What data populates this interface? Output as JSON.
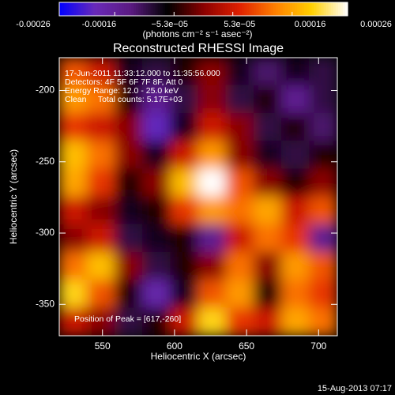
{
  "chart_data": {
    "type": "heatmap",
    "title": "Reconstructed RHESSI Image",
    "x_label": "Heliocentric X (arcsec)",
    "y_label": "Heliocentric Y (arcsec)",
    "xlim": [
      520,
      713
    ],
    "ylim": [
      -372,
      -177
    ],
    "xticks": [
      550,
      600,
      650,
      700
    ],
    "yticks": [
      -200,
      -250,
      -300,
      -350
    ],
    "annotations": [
      "17-Jun-2011 11:33:12.000 to 11:35:56.000",
      "Detectors: 4F 5F 6F 7F 8F, Att 0",
      "Energy Range: 12.0 - 25.0 keV",
      "Clean     Total counts: 5.17E+03"
    ],
    "peak_note": "Position of Peak = [617,-260]",
    "footer": "15-Aug-2013 07:17",
    "colorbar": {
      "label": "(photons cm⁻² s⁻¹ asec⁻²)",
      "zlim": [
        -0.00026,
        0.00026
      ],
      "ticks": [
        -0.00026,
        -0.00016,
        {
          "value": -5.3e-05,
          "label": "−5.3e−05"
        },
        {
          "value": 5.3e-05,
          "label": "5.3e−05"
        },
        0.00016,
        0.00026
      ]
    },
    "colorscale": [
      "#0000ff",
      "#6a2ab8",
      "#5a1a80",
      "#000000",
      "#8a0000",
      "#e02000",
      "#ff8000",
      "#ffd000",
      "#ffffff"
    ],
    "z": [
      [
        0.0001,
        5e-05,
        -8e-05,
        -0.0001,
        -5e-05,
        0,
        -8e-05,
        -0.00012,
        -8e-05,
        -0.0001
      ],
      [
        0.00015,
        0.00012,
        -5e-05,
        -0.00015,
        -0.0001,
        0,
        -0.0001,
        -5e-05,
        -0.00015,
        -0.0001
      ],
      [
        8e-05,
        5e-05,
        0,
        -0.0002,
        -8e-05,
        5e-05,
        0,
        -0.0001,
        -5e-05,
        -0.00012
      ],
      [
        0.00018,
        0.00012,
        0,
        -8e-05,
        5e-05,
        0.00015,
        0,
        -8e-05,
        -0.0001,
        -5e-05
      ],
      [
        0.00016,
        8e-05,
        -5e-05,
        0,
        0.00018,
        0.00026,
        0.0001,
        0,
        -5e-05,
        0
      ],
      [
        5e-05,
        0,
        -8e-05,
        -5e-05,
        8e-05,
        0.00015,
        0.00012,
        0.00016,
        5e-05,
        0.0001
      ],
      [
        0,
        5e-05,
        -0.0001,
        -8e-05,
        -5e-05,
        -0.00015,
        5e-05,
        0.00012,
        8e-05,
        -0.00015
      ],
      [
        0.00012,
        0.00018,
        0,
        -0.0001,
        -5e-05,
        0,
        0.00012,
        0,
        0.00015,
        0.0001
      ],
      [
        0.0002,
        0.0001,
        -5e-05,
        -0.00018,
        -8e-05,
        0.0001,
        0.00015,
        -5e-05,
        0.00012,
        8e-05
      ],
      [
        5e-05,
        0,
        -0.0001,
        -5e-05,
        5e-05,
        0.0002,
        8e-05,
        5e-05,
        0.00016,
        0.00012
      ]
    ]
  }
}
